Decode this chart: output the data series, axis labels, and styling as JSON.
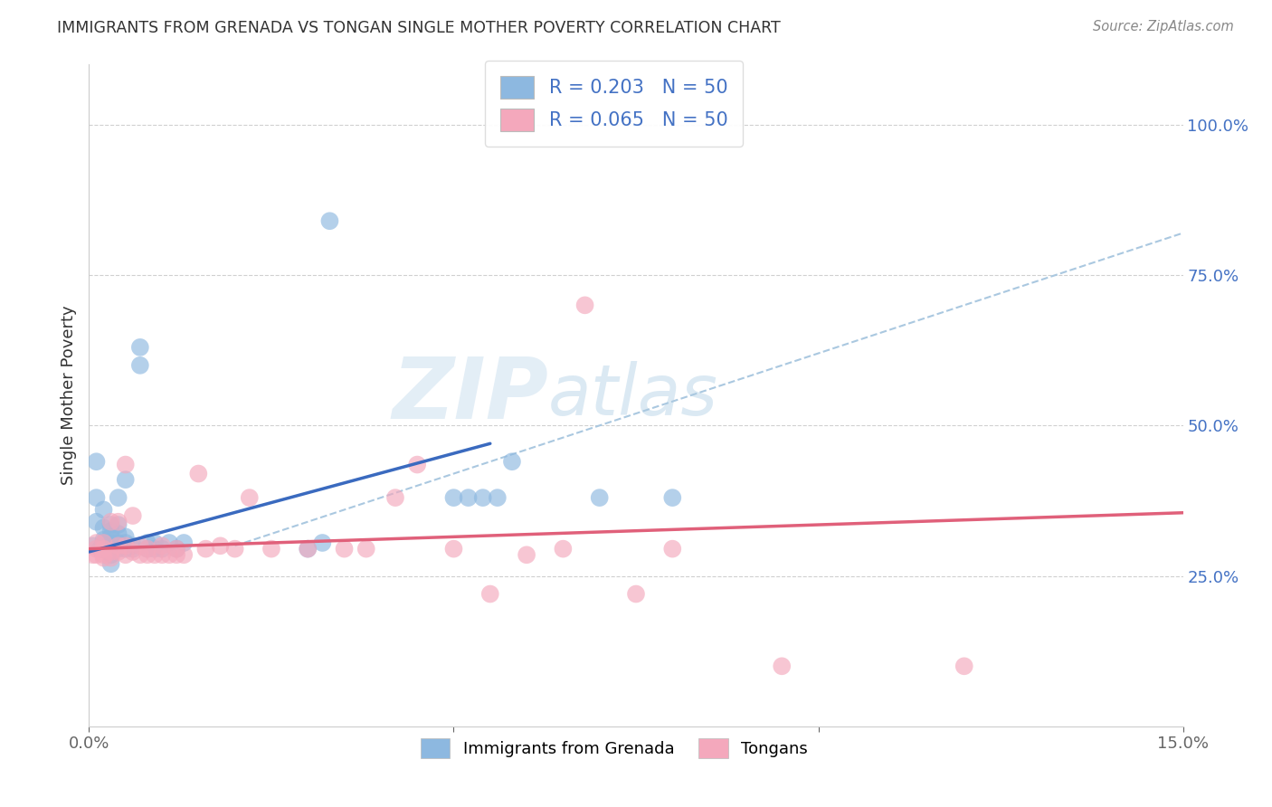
{
  "title": "IMMIGRANTS FROM GRENADA VS TONGAN SINGLE MOTHER POVERTY CORRELATION CHART",
  "source": "Source: ZipAtlas.com",
  "ylabel": "Single Mother Poverty",
  "xlim": [
    0.0,
    0.15
  ],
  "ylim": [
    0.0,
    1.1
  ],
  "xticks": [
    0.0,
    0.05,
    0.1,
    0.15
  ],
  "xtick_labels": [
    "0.0%",
    "",
    "",
    "15.0%"
  ],
  "ytick_labels_right": [
    "100.0%",
    "75.0%",
    "50.0%",
    "25.0%"
  ],
  "ytick_vals_right": [
    1.0,
    0.75,
    0.5,
    0.25
  ],
  "background_color": "#ffffff",
  "watermark_zip": "ZIP",
  "watermark_atlas": "atlas",
  "blue_color": "#8db8e0",
  "pink_color": "#f4a8bc",
  "blue_line_color": "#3a6abf",
  "pink_line_color": "#e0607a",
  "dashed_line_color": "#aac8e0",
  "legend_R1": "R = 0.203",
  "legend_N1": "N = 50",
  "legend_R2": "R = 0.065",
  "legend_N2": "N = 50",
  "legend_label1": "Immigrants from Grenada",
  "legend_label2": "Tongans",
  "blue_line_x": [
    0.0,
    0.055
  ],
  "blue_line_y": [
    0.29,
    0.47
  ],
  "pink_line_x": [
    0.0,
    0.15
  ],
  "pink_line_y": [
    0.295,
    0.355
  ],
  "dash_line_x": [
    0.02,
    0.15
  ],
  "dash_line_y": [
    0.3,
    0.82
  ],
  "blue_x": [
    0.0005,
    0.001,
    0.001,
    0.001,
    0.0015,
    0.002,
    0.002,
    0.002,
    0.002,
    0.002,
    0.0025,
    0.003,
    0.003,
    0.003,
    0.003,
    0.003,
    0.003,
    0.003,
    0.0035,
    0.004,
    0.004,
    0.004,
    0.004,
    0.004,
    0.005,
    0.005,
    0.005,
    0.005,
    0.006,
    0.006,
    0.007,
    0.007,
    0.008,
    0.008,
    0.009,
    0.009,
    0.01,
    0.011,
    0.012,
    0.013,
    0.03,
    0.032,
    0.033,
    0.05,
    0.052,
    0.054,
    0.056,
    0.058,
    0.07,
    0.08
  ],
  "blue_y": [
    0.3,
    0.34,
    0.38,
    0.44,
    0.295,
    0.295,
    0.305,
    0.31,
    0.33,
    0.36,
    0.295,
    0.27,
    0.285,
    0.295,
    0.305,
    0.315,
    0.325,
    0.335,
    0.295,
    0.295,
    0.305,
    0.32,
    0.335,
    0.38,
    0.295,
    0.305,
    0.315,
    0.41,
    0.295,
    0.3,
    0.6,
    0.63,
    0.295,
    0.305,
    0.295,
    0.305,
    0.295,
    0.305,
    0.295,
    0.305,
    0.295,
    0.305,
    0.84,
    0.38,
    0.38,
    0.38,
    0.38,
    0.44,
    0.38,
    0.38
  ],
  "pink_x": [
    0.0005,
    0.001,
    0.001,
    0.001,
    0.002,
    0.002,
    0.002,
    0.002,
    0.003,
    0.003,
    0.003,
    0.004,
    0.004,
    0.004,
    0.005,
    0.005,
    0.005,
    0.006,
    0.006,
    0.007,
    0.007,
    0.008,
    0.008,
    0.009,
    0.01,
    0.01,
    0.011,
    0.012,
    0.012,
    0.013,
    0.015,
    0.016,
    0.018,
    0.02,
    0.022,
    0.025,
    0.03,
    0.035,
    0.038,
    0.042,
    0.045,
    0.05,
    0.055,
    0.06,
    0.065,
    0.068,
    0.075,
    0.08,
    0.095,
    0.12
  ],
  "pink_y": [
    0.285,
    0.285,
    0.295,
    0.305,
    0.28,
    0.285,
    0.295,
    0.305,
    0.28,
    0.29,
    0.34,
    0.29,
    0.3,
    0.34,
    0.285,
    0.3,
    0.435,
    0.29,
    0.35,
    0.285,
    0.3,
    0.285,
    0.295,
    0.285,
    0.285,
    0.3,
    0.285,
    0.285,
    0.295,
    0.285,
    0.42,
    0.295,
    0.3,
    0.295,
    0.38,
    0.295,
    0.295,
    0.295,
    0.295,
    0.38,
    0.435,
    0.295,
    0.22,
    0.285,
    0.295,
    0.7,
    0.22,
    0.295,
    0.1,
    0.1
  ]
}
